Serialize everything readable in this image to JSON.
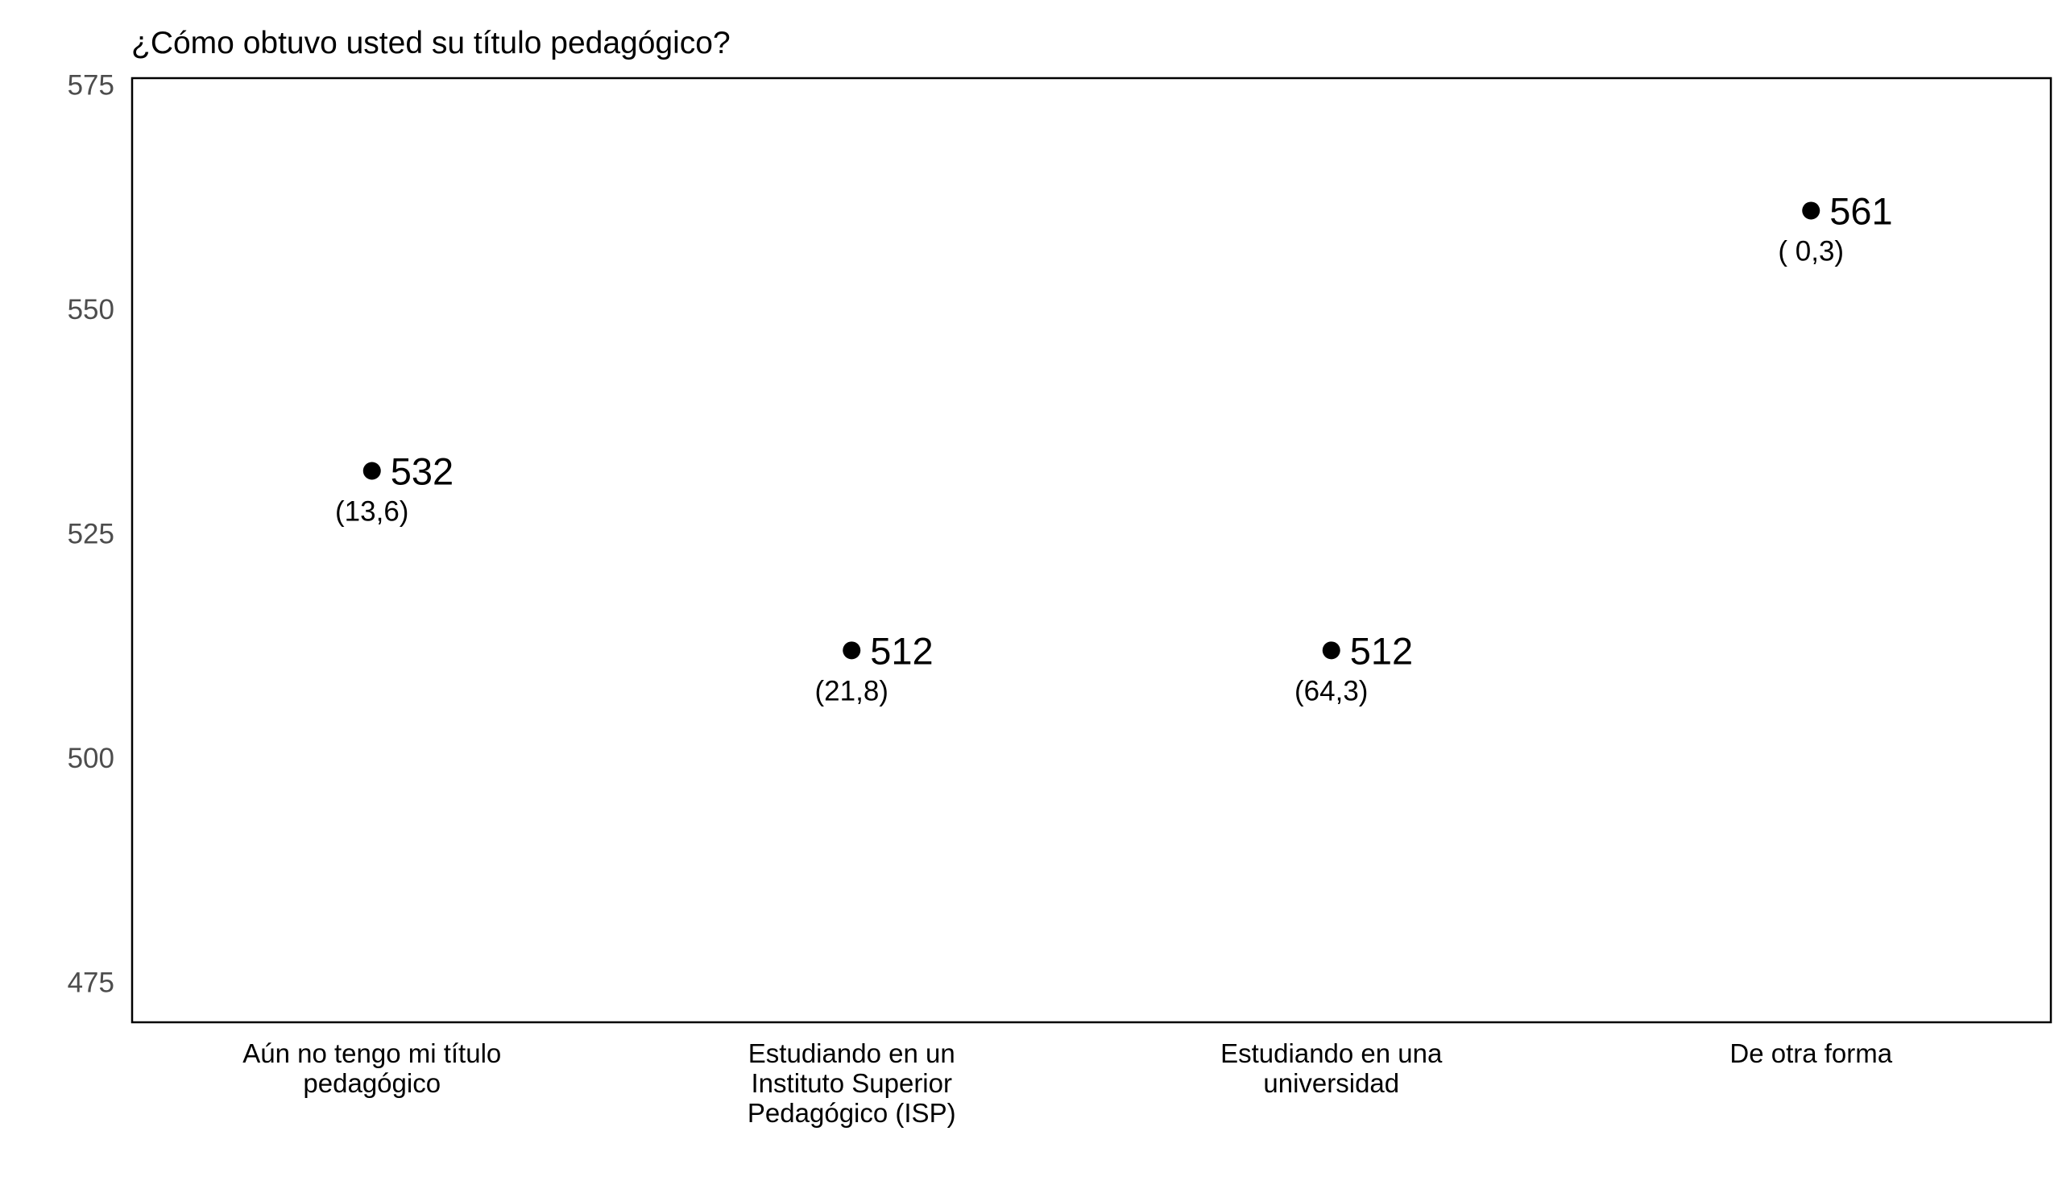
{
  "chart_data": {
    "type": "scatter",
    "title": "¿Cómo obtuvo usted su título pedagógico?",
    "xlabel": "",
    "ylabel": "",
    "ylim": [
      470,
      575
    ],
    "yticks": [
      "575",
      "550",
      "525",
      "500",
      "475"
    ],
    "ytick_values": [
      575,
      550,
      525,
      500,
      475
    ],
    "grid": false,
    "categories": [
      [
        "Aún no tengo mi título",
        "pedagógico"
      ],
      [
        "Estudiando en un",
        "Instituto Superior",
        "Pedagógico (ISP)"
      ],
      [
        "Estudiando en una",
        "universidad"
      ],
      [
        "De otra forma"
      ]
    ],
    "values": [
      532,
      512,
      512,
      561
    ],
    "value_labels": [
      "532",
      "512",
      "512",
      "561"
    ],
    "percent_labels": [
      "(13,6)",
      "(21,8)",
      "(64,3)",
      "( 0,3)"
    ],
    "colors": {
      "point": "#000000",
      "frame": "#000000",
      "tick_text": "#4d4d4d"
    }
  }
}
